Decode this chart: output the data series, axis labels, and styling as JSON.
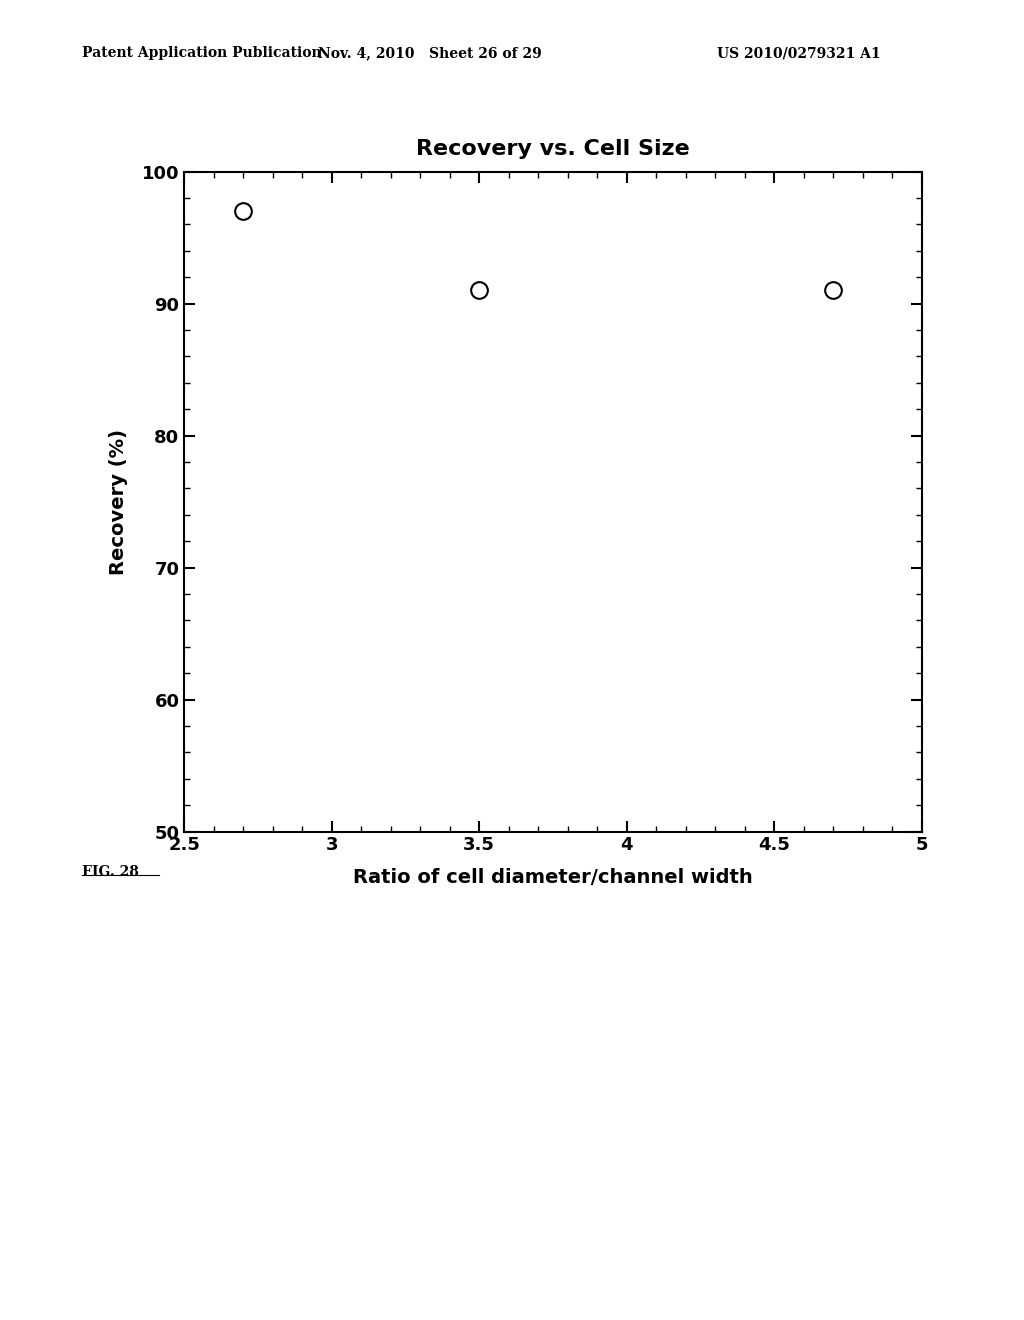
{
  "title": "Recovery vs. Cell Size",
  "xlabel": "Ratio of cell diameter/channel width",
  "ylabel": "Recovery (%)",
  "x_data": [
    2.7,
    3.5,
    4.7
  ],
  "y_data": [
    97,
    91,
    91
  ],
  "xlim": [
    2.5,
    5.0
  ],
  "ylim": [
    50,
    100
  ],
  "x_ticks": [
    2.5,
    3.0,
    3.5,
    4.0,
    4.5,
    5.0
  ],
  "y_ticks": [
    50,
    60,
    70,
    80,
    90,
    100
  ],
  "header_left": "Patent Application Publication",
  "header_mid": "Nov. 4, 2010   Sheet 26 of 29",
  "header_right": "US 2010/0279321 A1",
  "fig_label": "FIG. 28",
  "bg_color": "#ffffff",
  "text_color": "#000000",
  "marker_size": 12,
  "marker_color": "white",
  "marker_edgecolor": "#000000",
  "marker_linewidth": 1.5,
  "title_fontsize": 16,
  "axis_label_fontsize": 14,
  "tick_fontsize": 13,
  "header_fontsize": 10,
  "fig_label_fontsize": 10
}
